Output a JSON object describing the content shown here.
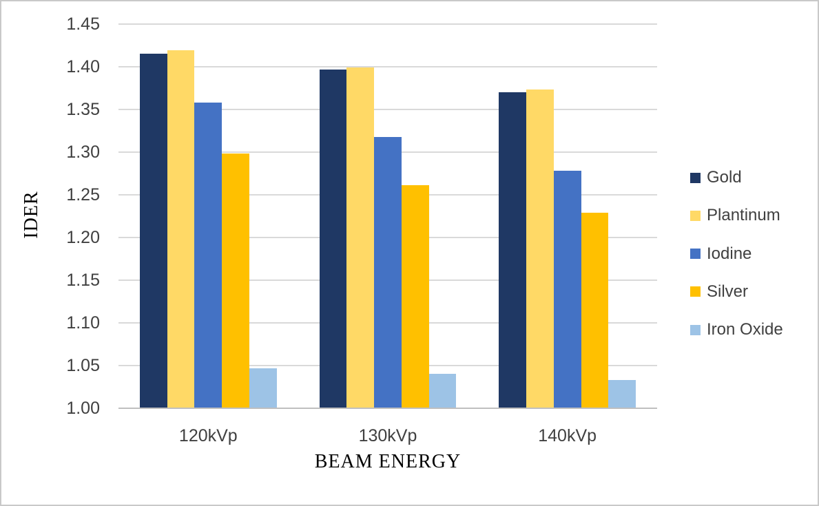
{
  "chart_data": {
    "type": "bar",
    "title": "",
    "xlabel": "BEAM ENERGY",
    "ylabel": "IDER",
    "categories": [
      "120kVp",
      "130kVp",
      "140kVp"
    ],
    "series": [
      {
        "name": "Gold",
        "color": "#1f3864",
        "values": [
          1.415,
          1.397,
          1.37
        ]
      },
      {
        "name": "Plantinum",
        "color": "#ffd966",
        "values": [
          1.419,
          1.399,
          1.373
        ]
      },
      {
        "name": "Iodine",
        "color": "#4472c4",
        "values": [
          1.358,
          1.318,
          1.278
        ]
      },
      {
        "name": "Silver",
        "color": "#ffc000",
        "values": [
          1.298,
          1.261,
          1.229
        ]
      },
      {
        "name": "Iron Oxide",
        "color": "#9dc3e6",
        "values": [
          1.047,
          1.04,
          1.033
        ]
      }
    ],
    "ylim": [
      1.0,
      1.45
    ],
    "ytick_step": 0.05,
    "ytick_labels": [
      "1.00",
      "1.05",
      "1.10",
      "1.15",
      "1.20",
      "1.25",
      "1.30",
      "1.35",
      "1.40",
      "1.45"
    ],
    "grid": true,
    "legend_position": "right"
  },
  "colors": {
    "gridline": "#d9d9d9",
    "axis_line": "#bfbfbf",
    "tick_label": "#404040",
    "axis_title": "#000000",
    "background": "#ffffff",
    "canvas_border": "#c9c9c9"
  }
}
